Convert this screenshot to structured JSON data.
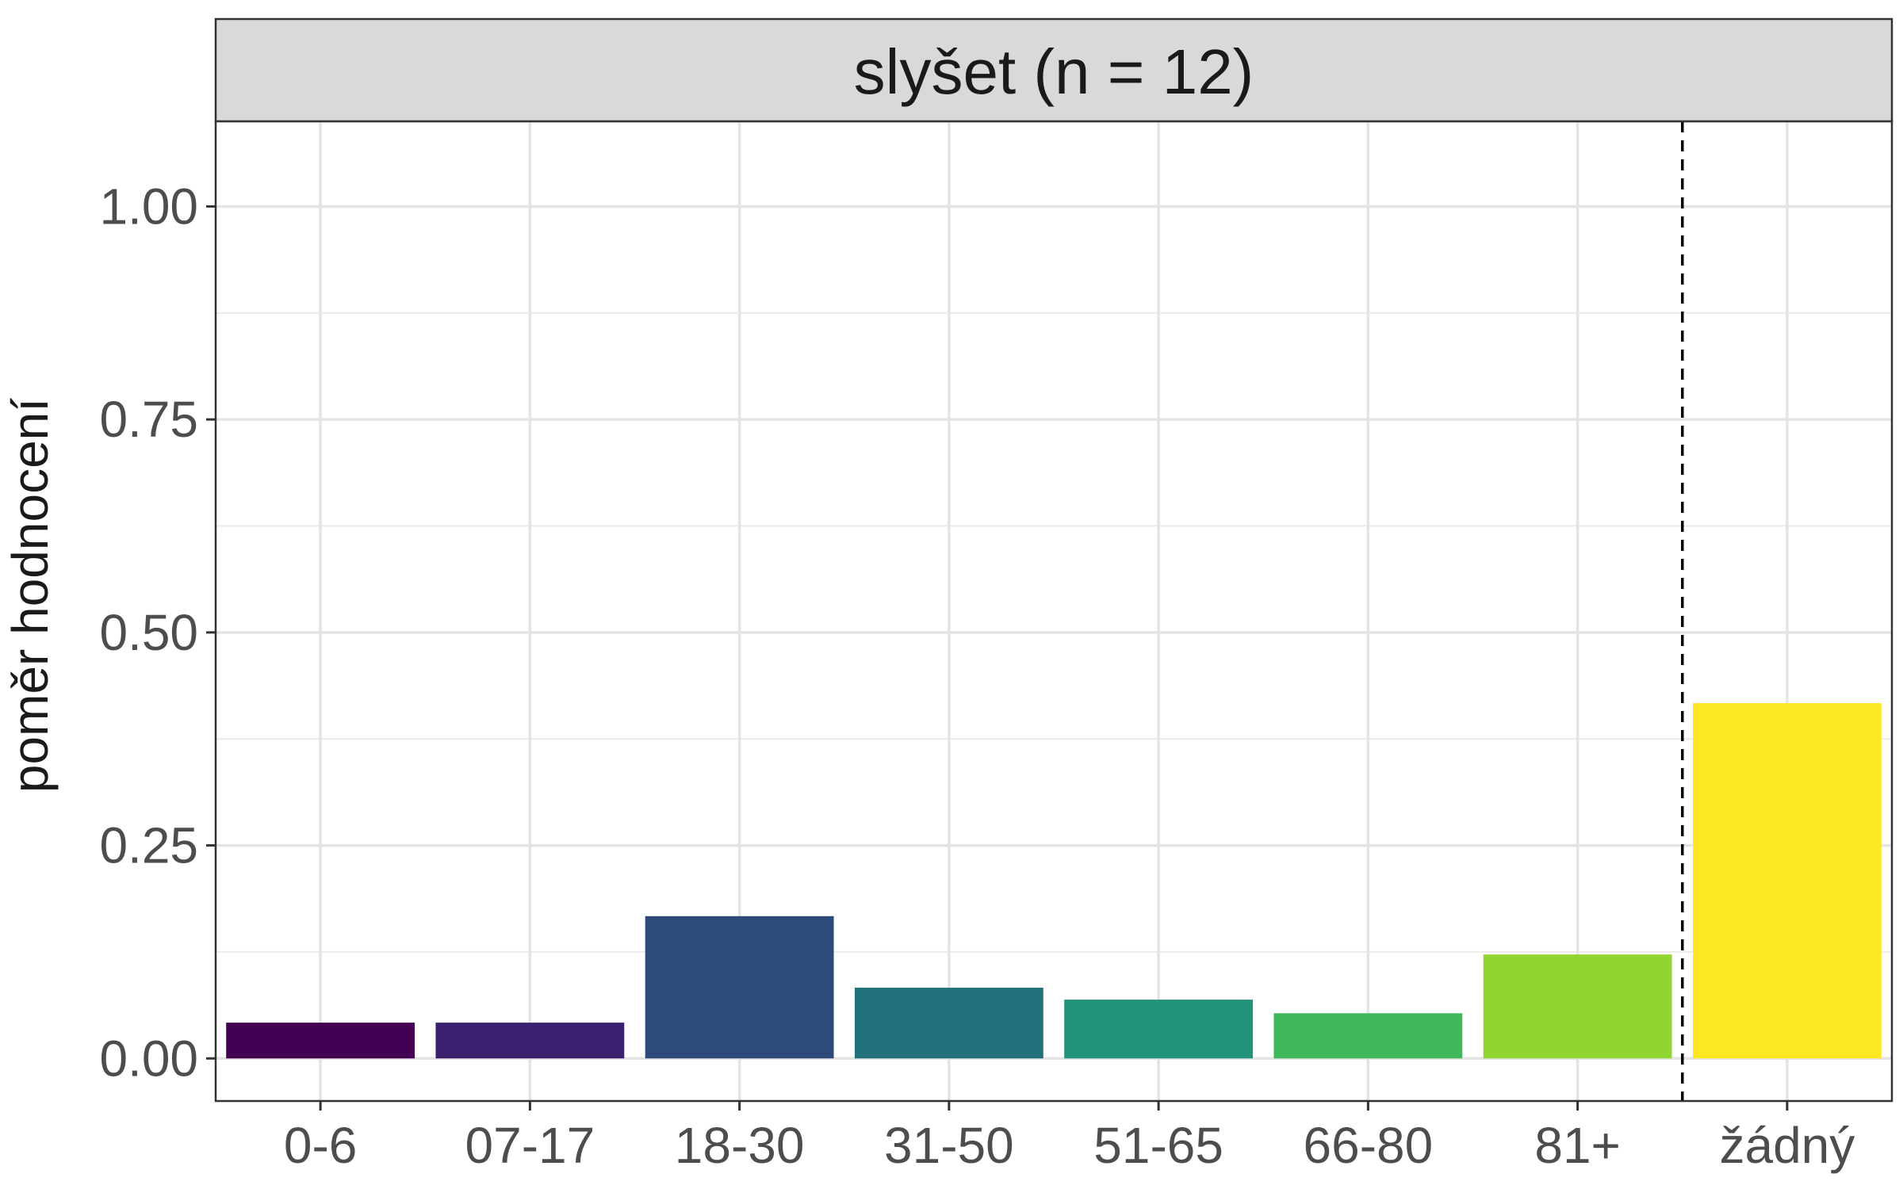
{
  "chart_data": {
    "type": "bar",
    "facet_title": "slyšet (n = 12)",
    "categories": [
      "0-6",
      "07-17",
      "18-30",
      "31-50",
      "51-65",
      "66-80",
      "81+",
      "žádný"
    ],
    "values": [
      0.042,
      0.042,
      0.167,
      0.083,
      0.069,
      0.053,
      0.122,
      0.417
    ],
    "colors": [
      "#440154",
      "#3B2070",
      "#2C4A7A",
      "#21707A",
      "#22937A",
      "#40B95A",
      "#91D531",
      "#FDE725"
    ],
    "ylabel": "poměr hodnocení",
    "xlabel": "",
    "ylim": [
      -0.05,
      1.1
    ],
    "yticks": [
      "0.00",
      "0.25",
      "0.50",
      "0.75",
      "1.00"
    ],
    "ytick_values": [
      0,
      0.25,
      0.5,
      0.75,
      1.0
    ],
    "reference_line": {
      "style": "dashed",
      "between": [
        "81+",
        "žádný"
      ]
    },
    "grid": true,
    "legend": "none"
  }
}
